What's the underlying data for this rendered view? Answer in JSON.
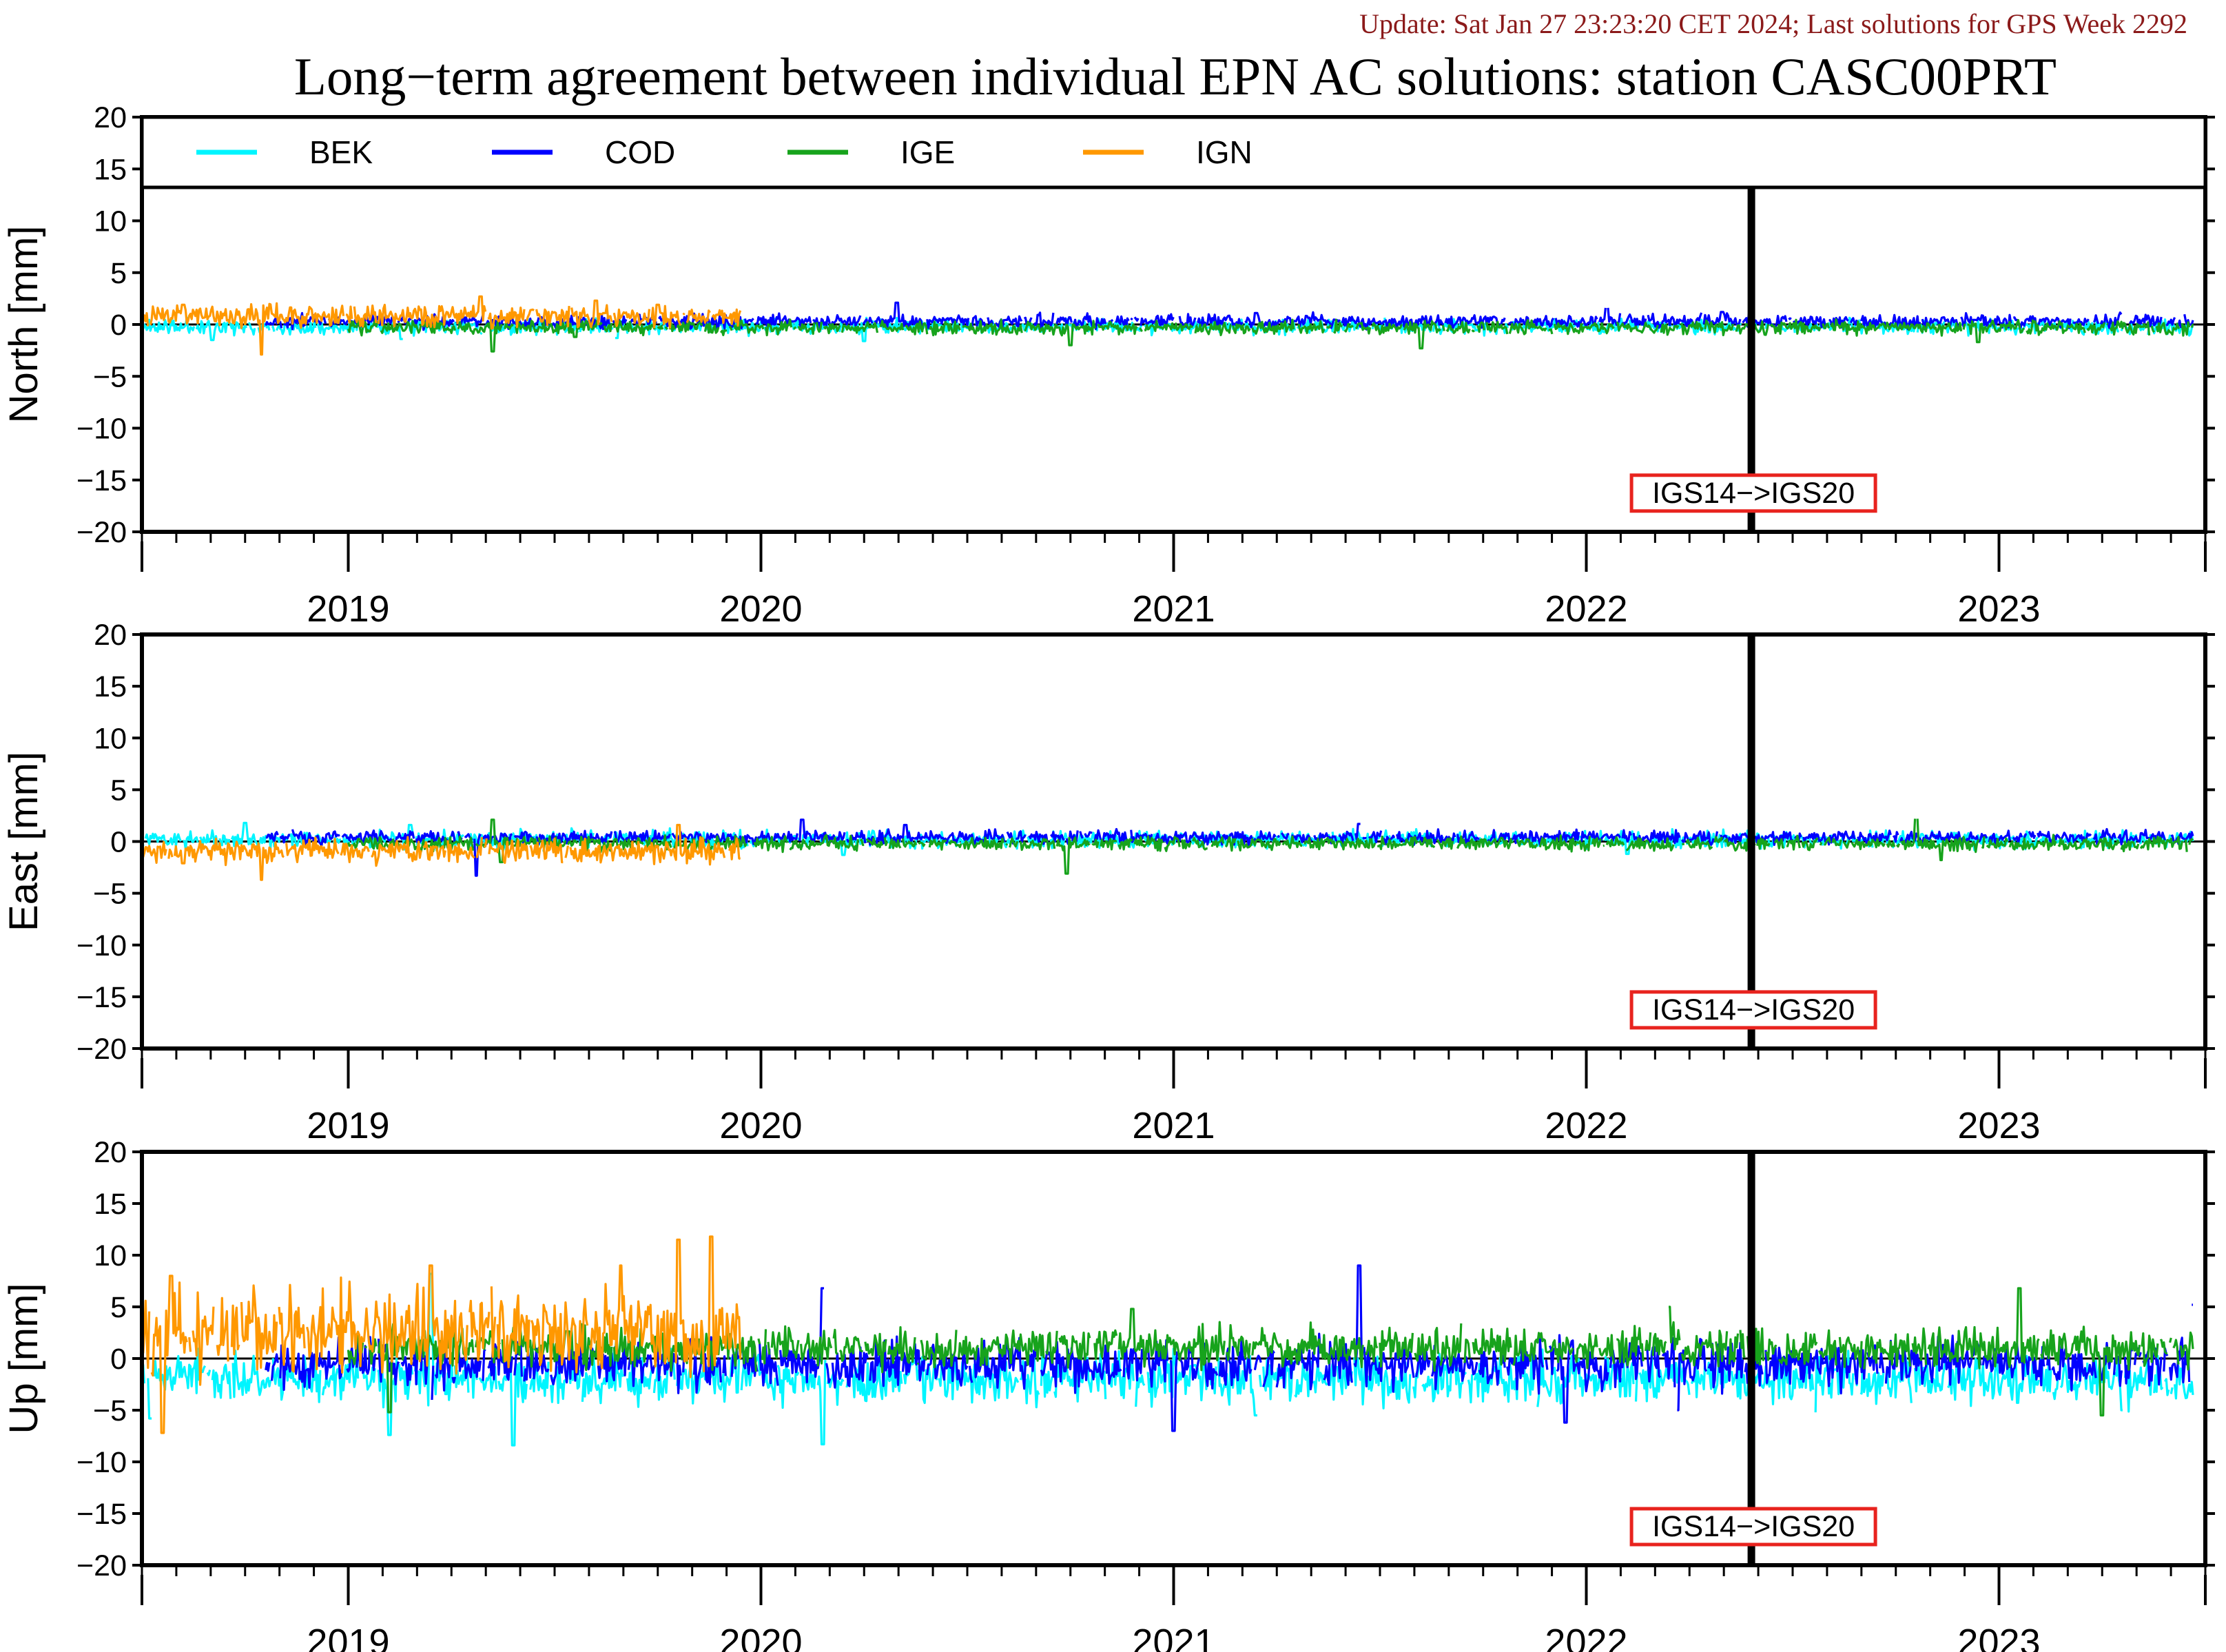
{
  "header": {
    "update_text": "Update: Sat Jan 27 23:23:20 CET 2024; Last solutions for GPS Week 2292",
    "title": "Long−term agreement between individual EPN AC solutions: station CASC00PRT"
  },
  "colors": {
    "update_text": "#8b1a1a",
    "annotation_box": "#e8231e",
    "BEK": "#00f5ff",
    "COD": "#0000ff",
    "IGE": "#17a31c",
    "IGN": "#ff9800"
  },
  "chart_data": {
    "type": "line",
    "x_unit": "year",
    "xlim": [
      2018.5,
      2023.5
    ],
    "x_ticks": [
      "2019",
      "2020",
      "2021",
      "2022",
      "2023"
    ],
    "legend": {
      "placement": "top (inside North panel)",
      "entries": [
        "BEK",
        "COD",
        "IGE",
        "IGN"
      ]
    },
    "reference_line": {
      "x": 2022.4,
      "label": "IGS14−>IGS20"
    },
    "panels": [
      {
        "ylabel": "North [mm]",
        "ylim": [
          -20,
          20
        ],
        "yticks": [
          "20",
          "15",
          "10",
          "5",
          "0",
          "−5",
          "−10",
          "−15",
          "−20"
        ],
        "series": [
          {
            "name": "BEK",
            "x_range": [
              2018.5,
              2023.47
            ],
            "level": -0.2,
            "noise": 0.5,
            "spikes": [
              [
                2018.67,
                -1.5
              ],
              [
                2019.13,
                -1.4
              ],
              [
                2019.65,
                -1.3
              ],
              [
                2020.25,
                -1.6
              ]
            ]
          },
          {
            "name": "COD",
            "x_range": [
              2018.8,
              2023.47
            ],
            "level": 0.3,
            "noise": 0.45,
            "spikes": [
              [
                2020.33,
                2.1
              ],
              [
                2021.2,
                1.1
              ],
              [
                2022.05,
                1.6
              ],
              [
                2022.33,
                1.2
              ]
            ]
          },
          {
            "name": "IGE",
            "x_range": [
              2019.0,
              2023.47
            ],
            "level": -0.3,
            "noise": 0.45,
            "spikes": [
              [
                2019.35,
                -2.6
              ],
              [
                2019.55,
                -1.2
              ],
              [
                2020.75,
                -2.0
              ],
              [
                2021.6,
                -2.3
              ],
              [
                2022.95,
                -1.7
              ]
            ]
          },
          {
            "name": "IGN",
            "x_range": [
              2018.5,
              2019.95
            ],
            "level": 0.8,
            "noise": 0.7,
            "spikes": [
              [
                2018.6,
                1.9
              ],
              [
                2018.79,
                -2.9
              ],
              [
                2019.32,
                2.7
              ],
              [
                2019.6,
                2.3
              ],
              [
                2019.75,
                1.9
              ]
            ]
          }
        ]
      },
      {
        "ylabel": "East [mm]",
        "ylim": [
          -20,
          20
        ],
        "yticks": [
          "20",
          "15",
          "10",
          "5",
          "0",
          "−5",
          "−10",
          "−15",
          "−20"
        ],
        "series": [
          {
            "name": "BEK",
            "x_range": [
              2018.5,
              2023.47
            ],
            "level": 0.2,
            "noise": 0.55,
            "spikes": [
              [
                2018.75,
                1.8
              ],
              [
                2019.15,
                1.6
              ],
              [
                2020.2,
                -1.3
              ],
              [
                2022.1,
                -1.2
              ]
            ]
          },
          {
            "name": "COD",
            "x_range": [
              2018.8,
              2023.47
            ],
            "level": 0.4,
            "noise": 0.45,
            "spikes": [
              [
                2019.31,
                -3.3
              ],
              [
                2020.1,
                2.1
              ],
              [
                2020.35,
                1.6
              ],
              [
                2021.45,
                1.7
              ],
              [
                2022.4,
                1.6
              ]
            ]
          },
          {
            "name": "IGE",
            "x_range": [
              2019.0,
              2023.47
            ],
            "level": -0.2,
            "noise": 0.45,
            "spikes": [
              [
                2019.35,
                2.1
              ],
              [
                2019.37,
                -2.0
              ],
              [
                2020.74,
                -3.1
              ],
              [
                2022.8,
                2.2
              ],
              [
                2022.86,
                -1.8
              ]
            ]
          },
          {
            "name": "IGN",
            "x_range": [
              2018.5,
              2019.95
            ],
            "level": -0.9,
            "noise": 0.8,
            "spikes": [
              [
                2018.79,
                -3.7
              ],
              [
                2018.6,
                -2.1
              ],
              [
                2019.52,
                -2.0
              ],
              [
                2019.8,
                1.6
              ]
            ]
          }
        ]
      },
      {
        "ylabel": "Up [mm]",
        "ylim": [
          -20,
          20
        ],
        "yticks": [
          "20",
          "15",
          "10",
          "5",
          "0",
          "−5",
          "−10",
          "−15",
          "−20"
        ],
        "series": [
          {
            "name": "BEK",
            "x_range": [
              2018.5,
              2023.47
            ],
            "level": -2.0,
            "noise": 1.6,
            "spikes": [
              [
                2018.52,
                -5.8
              ],
              [
                2019.1,
                -7.4
              ],
              [
                2019.2,
                8.2
              ],
              [
                2019.4,
                -8.4
              ],
              [
                2020.15,
                -8.3
              ],
              [
                2021.2,
                -5.5
              ],
              [
                2023.3,
                -5.0
              ]
            ]
          },
          {
            "name": "COD",
            "x_range": [
              2018.8,
              2023.47
            ],
            "level": -0.5,
            "noise": 1.6,
            "spikes": [
              [
                2019.2,
                -4.0
              ],
              [
                2020.15,
                6.8
              ],
              [
                2021.0,
                -7.0
              ],
              [
                2021.45,
                9.0
              ],
              [
                2021.95,
                -6.2
              ],
              [
                2022.22,
                -5.0
              ],
              [
                2023.47,
                5.2
              ]
            ]
          },
          {
            "name": "IGE",
            "x_range": [
              2019.0,
              2023.47
            ],
            "level": 1.0,
            "noise": 1.3,
            "spikes": [
              [
                2019.1,
                -5.2
              ],
              [
                2020.9,
                4.8
              ],
              [
                2022.2,
                5.0
              ],
              [
                2023.05,
                6.8
              ],
              [
                2023.25,
                -5.5
              ]
            ]
          },
          {
            "name": "IGN",
            "x_range": [
              2018.5,
              2019.95
            ],
            "level": 2.5,
            "noise": 2.8,
            "spikes": [
              [
                2018.57,
                8.0
              ],
              [
                2018.55,
                -7.2
              ],
              [
                2019.2,
                9.0
              ],
              [
                2019.66,
                9.0
              ],
              [
                2019.8,
                11.5
              ],
              [
                2019.88,
                11.8
              ]
            ]
          }
        ]
      }
    ]
  }
}
